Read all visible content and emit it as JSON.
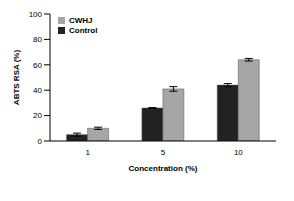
{
  "chart_data": {
    "type": "bar",
    "x_label": "Concentration (%)",
    "y_label": "ABTS RSA (%)",
    "categories": [
      "1",
      "5",
      "10"
    ],
    "series": [
      {
        "name": "Control",
        "color": "#222222",
        "values": [
          5,
          26,
          44
        ],
        "errors": [
          1.2,
          0.3,
          1.2
        ]
      },
      {
        "name": "CWHJ",
        "color": "#a6a6a6",
        "values": [
          10,
          41,
          64
        ],
        "errors": [
          0.9,
          1.8,
          1.0
        ]
      }
    ],
    "ylim": [
      0,
      100
    ],
    "yticks": [
      0,
      20,
      40,
      60,
      80,
      100
    ],
    "grid": false,
    "legend": "upper left"
  }
}
